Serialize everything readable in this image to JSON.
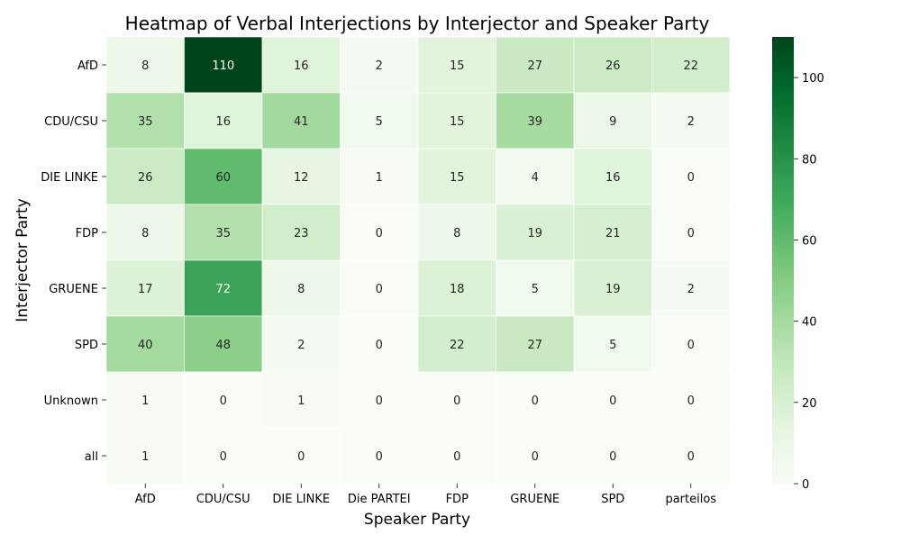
{
  "chart_data": {
    "type": "heatmap",
    "title": "Heatmap of Verbal Interjections by Interjector and Speaker Party",
    "xlabel": "Speaker Party",
    "ylabel": "Interjector Party",
    "columns": [
      "AfD",
      "CDU/CSU",
      "DIE LINKE",
      "Die PARTEI",
      "FDP",
      "GRUENE",
      "SPD",
      "parteilos"
    ],
    "rows": [
      "AfD",
      "CDU/CSU",
      "DIE LINKE",
      "FDP",
      "GRUENE",
      "SPD",
      "Unknown",
      "all"
    ],
    "values": [
      [
        8,
        110,
        16,
        2,
        15,
        27,
        26,
        22
      ],
      [
        35,
        16,
        41,
        5,
        15,
        39,
        9,
        2
      ],
      [
        26,
        60,
        12,
        1,
        15,
        4,
        16,
        0
      ],
      [
        8,
        35,
        23,
        0,
        8,
        19,
        21,
        0
      ],
      [
        17,
        72,
        8,
        0,
        18,
        5,
        19,
        2
      ],
      [
        40,
        48,
        2,
        0,
        22,
        27,
        5,
        0
      ],
      [
        1,
        0,
        1,
        0,
        0,
        0,
        0,
        0
      ],
      [
        1,
        0,
        0,
        0,
        0,
        0,
        0,
        0
      ]
    ],
    "colorbar": {
      "min": 0,
      "max": 110,
      "ticks": [
        0,
        20,
        40,
        60,
        80,
        100
      ],
      "colormap": [
        "#f7fcf5",
        "#e5f5e0",
        "#c7e9c0",
        "#a1d99b",
        "#74c476",
        "#41ab5d",
        "#238b45",
        "#006d2c",
        "#00441b"
      ]
    },
    "legend": "right",
    "grid": false
  }
}
